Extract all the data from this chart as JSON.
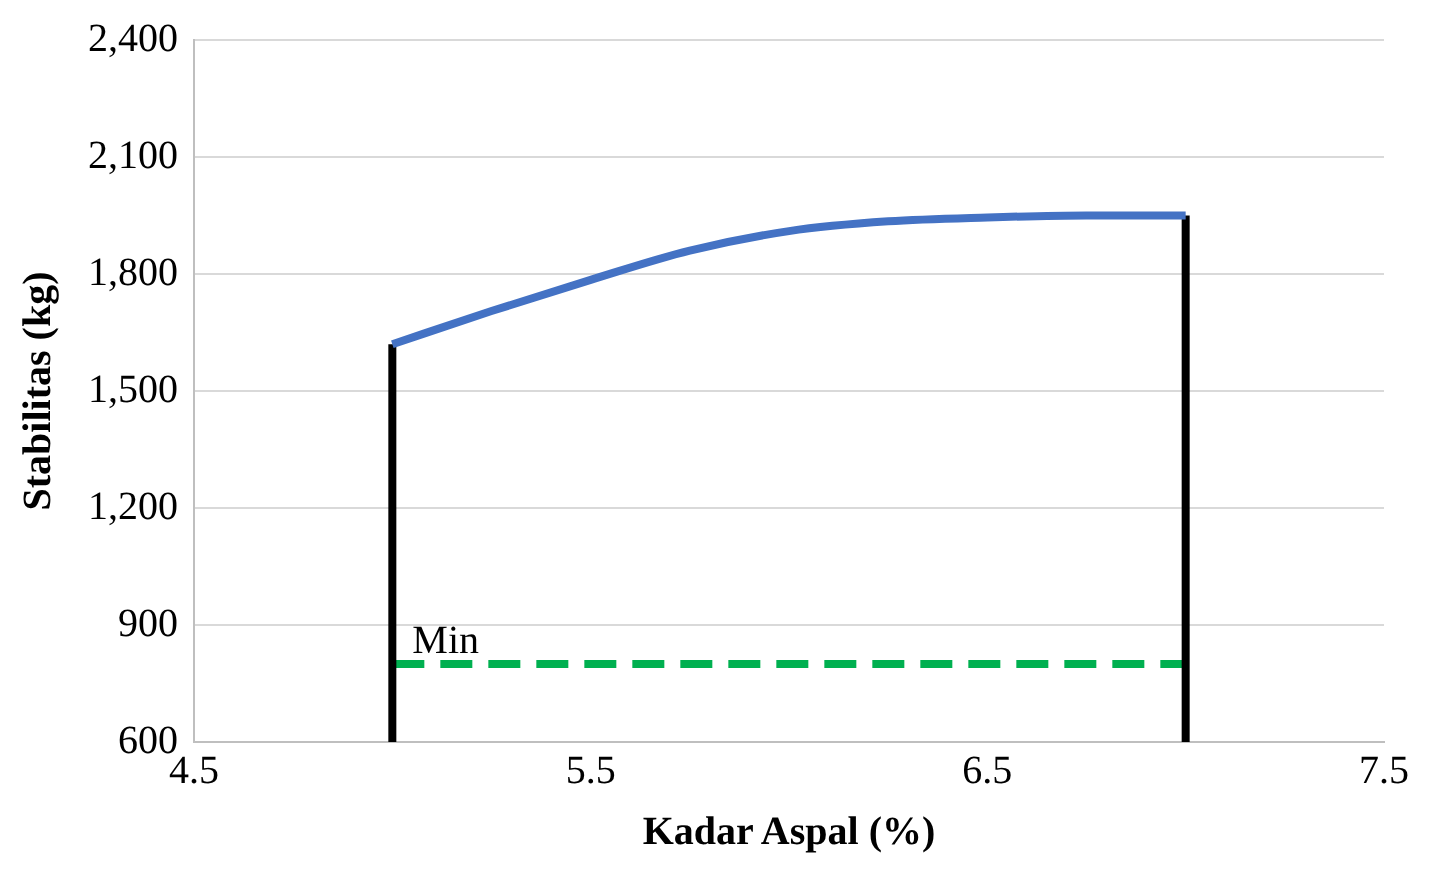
{
  "chart_data": {
    "type": "line",
    "xlabel": "Kadar Aspal (%)",
    "ylabel": "Stabilitas (kg)",
    "xlim": [
      4.5,
      7.5
    ],
    "xticks": [
      4.5,
      5.5,
      6.5,
      7.5
    ],
    "ylim": [
      600,
      2400
    ],
    "yticks": [
      600,
      900,
      {
        "value": 1200,
        "label": "1,200"
      },
      {
        "value": 1500,
        "label": "1,500"
      },
      {
        "value": 1800,
        "label": "1,800"
      },
      {
        "value": 2100,
        "label": "2,100"
      },
      {
        "value": 2400,
        "label": "2,400"
      }
    ],
    "grid": "y",
    "marker": "none",
    "series": [
      {
        "type": "line",
        "color": "#4472c4",
        "x": [
          5,
          5.25,
          5.5,
          5.75,
          6,
          6.25,
          6.5,
          6.75,
          7
        ],
        "values": [
          1620,
          1705,
          1785,
          1860,
          1910,
          1935,
          1945,
          1950,
          1950
        ]
      },
      {
        "type": "line",
        "color": "#000000",
        "x": [
          5,
          5
        ],
        "values": [
          600,
          1620
        ]
      },
      {
        "type": "line",
        "color": "#000000",
        "x": [
          7,
          7
        ],
        "values": [
          600,
          1950
        ]
      },
      {
        "type": "line",
        "color": "#00b050",
        "line_style": "dashed",
        "x": [
          5,
          7
        ],
        "values": [
          800,
          800
        ]
      }
    ],
    "annotations": [
      {
        "text": "Min",
        "x": 5,
        "y": 800
      }
    ]
  }
}
